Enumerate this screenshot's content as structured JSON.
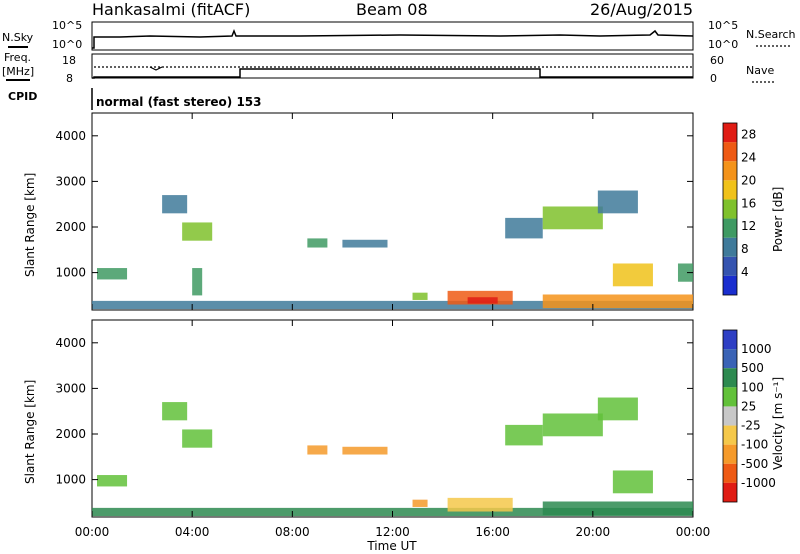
{
  "header": {
    "station": "Hankasalmi (fitACF)",
    "beam": "Beam 08",
    "date": "26/Aug/2015"
  },
  "top_panels": {
    "nsky_label": "N.Sky",
    "nsky_ticks": [
      "10^5",
      "10^0"
    ],
    "nsearch_label": "N.Search",
    "nsearch_ticks": [
      "10^5",
      "10^0"
    ],
    "freq_label": "Freq.",
    "freq_unit": "[MHz]",
    "freq_ticks": [
      "18",
      "8"
    ],
    "nave_label": "Nave",
    "nave_ticks": [
      "60",
      "0"
    ],
    "cpid_label": "CPID",
    "cpid_text": "normal (fast stereo) 153"
  },
  "colors": {
    "power_scale": [
      "#1a2ecf",
      "#3554b0",
      "#3f7a9a",
      "#3f9a63",
      "#7fc12c",
      "#f0c21a",
      "#f4931a",
      "#ee5a14",
      "#e01c14"
    ],
    "velocity_scale": [
      "#2e3fc4",
      "#3a63b6",
      "#2d8a50",
      "#62c13a",
      "#c8c8c8",
      "#f5c84a",
      "#f59a2a",
      "#ee5a14",
      "#e01c14"
    ]
  },
  "chart_data": [
    {
      "type": "heatmap",
      "name": "power",
      "ylabel": "Slant Range [km]",
      "yticks": [
        "1000",
        "2000",
        "3000",
        "4000"
      ],
      "ylim": [
        180,
        4500
      ],
      "xticks": [
        "00:00",
        "04:00",
        "08:00",
        "12:00",
        "16:00",
        "20:00",
        "00:00"
      ],
      "xlim": [
        0,
        24
      ],
      "colorbar_label": "Power [dB]",
      "colorbar_ticks": [
        "4",
        "8",
        "12",
        "16",
        "20",
        "24",
        "28"
      ],
      "colorbar_range": [
        0,
        30
      ],
      "regions": [
        {
          "t0": 0.0,
          "t1": 24.0,
          "r0": 200,
          "r1": 380,
          "value": 8
        },
        {
          "t0": 0.2,
          "t1": 1.4,
          "r0": 850,
          "r1": 1100,
          "value": 10
        },
        {
          "t0": 2.8,
          "t1": 3.8,
          "r0": 2300,
          "r1": 2700,
          "value": 8
        },
        {
          "t0": 3.6,
          "t1": 4.8,
          "r0": 1700,
          "r1": 2100,
          "value": 14
        },
        {
          "t0": 4.0,
          "t1": 4.4,
          "r0": 500,
          "r1": 1100,
          "value": 12
        },
        {
          "t0": 8.6,
          "t1": 9.4,
          "r0": 1550,
          "r1": 1750,
          "value": 13
        },
        {
          "t0": 10.0,
          "t1": 11.8,
          "r0": 1550,
          "r1": 1720,
          "value": 9
        },
        {
          "t0": 12.8,
          "t1": 13.4,
          "r0": 400,
          "r1": 560,
          "value": 14
        },
        {
          "t0": 14.2,
          "t1": 16.8,
          "r0": 300,
          "r1": 600,
          "value": 24
        },
        {
          "t0": 15.0,
          "t1": 16.2,
          "r0": 320,
          "r1": 460,
          "value": 28
        },
        {
          "t0": 16.5,
          "t1": 18.0,
          "r0": 1750,
          "r1": 2200,
          "value": 7
        },
        {
          "t0": 18.0,
          "t1": 20.4,
          "r0": 1950,
          "r1": 2450,
          "value": 14
        },
        {
          "t0": 20.2,
          "t1": 21.8,
          "r0": 2300,
          "r1": 2800,
          "value": 9
        },
        {
          "t0": 18.0,
          "t1": 24.0,
          "r0": 220,
          "r1": 520,
          "value": 22
        },
        {
          "t0": 20.8,
          "t1": 22.4,
          "r0": 700,
          "r1": 1200,
          "value": 17
        },
        {
          "t0": 23.4,
          "t1": 24.0,
          "r0": 800,
          "r1": 1200,
          "value": 12
        }
      ]
    },
    {
      "type": "heatmap",
      "name": "velocity",
      "ylabel": "Slant Range [km]",
      "yticks": [
        "1000",
        "2000",
        "3000",
        "4000"
      ],
      "ylim": [
        180,
        4500
      ],
      "xticks": [
        "00:00",
        "04:00",
        "08:00",
        "12:00",
        "16:00",
        "20:00",
        "00:00"
      ],
      "xlim": [
        0,
        24
      ],
      "xlabel": "Time UT",
      "colorbar_label": "Velocity [m s⁻¹]",
      "colorbar_ticks": [
        "1000",
        "500",
        "100",
        "25",
        "-25",
        "-100",
        "-500",
        "-1000"
      ],
      "regions": [
        {
          "t0": 0.0,
          "t1": 24.0,
          "r0": 200,
          "r1": 380,
          "value": "100"
        },
        {
          "t0": 0.2,
          "t1": 1.4,
          "r0": 850,
          "r1": 1100,
          "value": "25"
        },
        {
          "t0": 2.8,
          "t1": 3.8,
          "r0": 2300,
          "r1": 2700,
          "value": "25"
        },
        {
          "t0": 3.6,
          "t1": 4.8,
          "r0": 1700,
          "r1": 2100,
          "value": "25"
        },
        {
          "t0": 8.6,
          "t1": 9.4,
          "r0": 1550,
          "r1": 1750,
          "value": "-500"
        },
        {
          "t0": 10.0,
          "t1": 11.8,
          "r0": 1550,
          "r1": 1720,
          "value": "-500"
        },
        {
          "t0": 12.8,
          "t1": 13.4,
          "r0": 400,
          "r1": 560,
          "value": "-500"
        },
        {
          "t0": 14.2,
          "t1": 16.8,
          "r0": 300,
          "r1": 600,
          "value": "-100"
        },
        {
          "t0": 16.5,
          "t1": 18.0,
          "r0": 1750,
          "r1": 2200,
          "value": "25"
        },
        {
          "t0": 18.0,
          "t1": 20.4,
          "r0": 1950,
          "r1": 2450,
          "value": "25"
        },
        {
          "t0": 20.2,
          "t1": 21.8,
          "r0": 2300,
          "r1": 2800,
          "value": "25"
        },
        {
          "t0": 18.0,
          "t1": 24.0,
          "r0": 220,
          "r1": 520,
          "value": "100"
        },
        {
          "t0": 20.8,
          "t1": 22.4,
          "r0": 700,
          "r1": 1200,
          "value": "25"
        }
      ]
    }
  ]
}
